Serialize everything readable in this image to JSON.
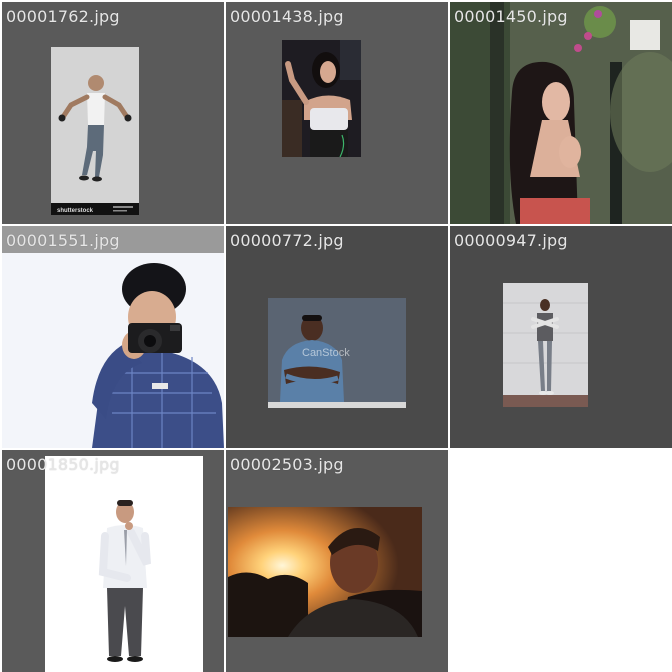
{
  "gallery": {
    "items": [
      {
        "filename": "00001762.jpg",
        "subject": "man-shouting-photo",
        "strip_text": "shutterstock"
      },
      {
        "filename": "00001438.jpg",
        "subject": "woman-posing-photo"
      },
      {
        "filename": "00001450.jpg",
        "subject": "woman-long-hair-photo"
      },
      {
        "filename": "00001551.jpg",
        "subject": "man-with-camera-photo"
      },
      {
        "filename": "00000772.jpg",
        "subject": "man-arms-crossed-photo",
        "watermark": "CanStock"
      },
      {
        "filename": "00000947.jpg",
        "subject": "man-against-wall-photo"
      },
      {
        "filename": "00001850.jpg",
        "subject": "man-white-shirt-photo"
      },
      {
        "filename": "00002503.jpg",
        "subject": "man-sunset-photo"
      }
    ]
  },
  "colors": {
    "tile_bg": "#5a5a5a",
    "tile_bg_alt": "#4a4a4a",
    "label_text": "#e6e6e6",
    "page_bg": "#ffffff"
  }
}
